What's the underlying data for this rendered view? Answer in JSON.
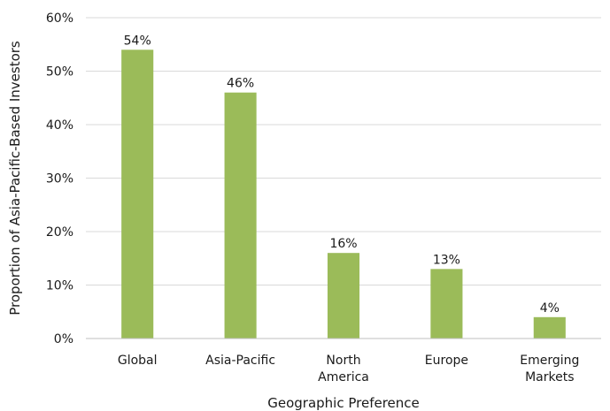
{
  "chart_data": {
    "type": "bar",
    "categories": [
      "Global",
      "Asia-Pacific",
      "North America",
      "Europe",
      "Emerging Markets"
    ],
    "category_lines": [
      [
        "Global"
      ],
      [
        "Asia-Pacific"
      ],
      [
        "North",
        "America"
      ],
      [
        "Europe"
      ],
      [
        "Emerging",
        "Markets"
      ]
    ],
    "values": [
      54,
      46,
      16,
      13,
      4
    ],
    "value_labels": [
      "54%",
      "46%",
      "16%",
      "13%",
      "4%"
    ],
    "xlabel": "Geographic Preference",
    "ylabel": "Proportion of Asia-Pacific-Based Investors",
    "ylim": [
      0,
      60
    ],
    "yticks": [
      0,
      10,
      20,
      30,
      40,
      50,
      60
    ],
    "ytick_labels": [
      "0%",
      "10%",
      "20%",
      "30%",
      "40%",
      "50%",
      "60%"
    ],
    "grid": true,
    "legend": "none",
    "colors": {
      "bar": "#9BBB59",
      "grid": "#D9D9D9",
      "axis": "#BFBFBF"
    }
  }
}
